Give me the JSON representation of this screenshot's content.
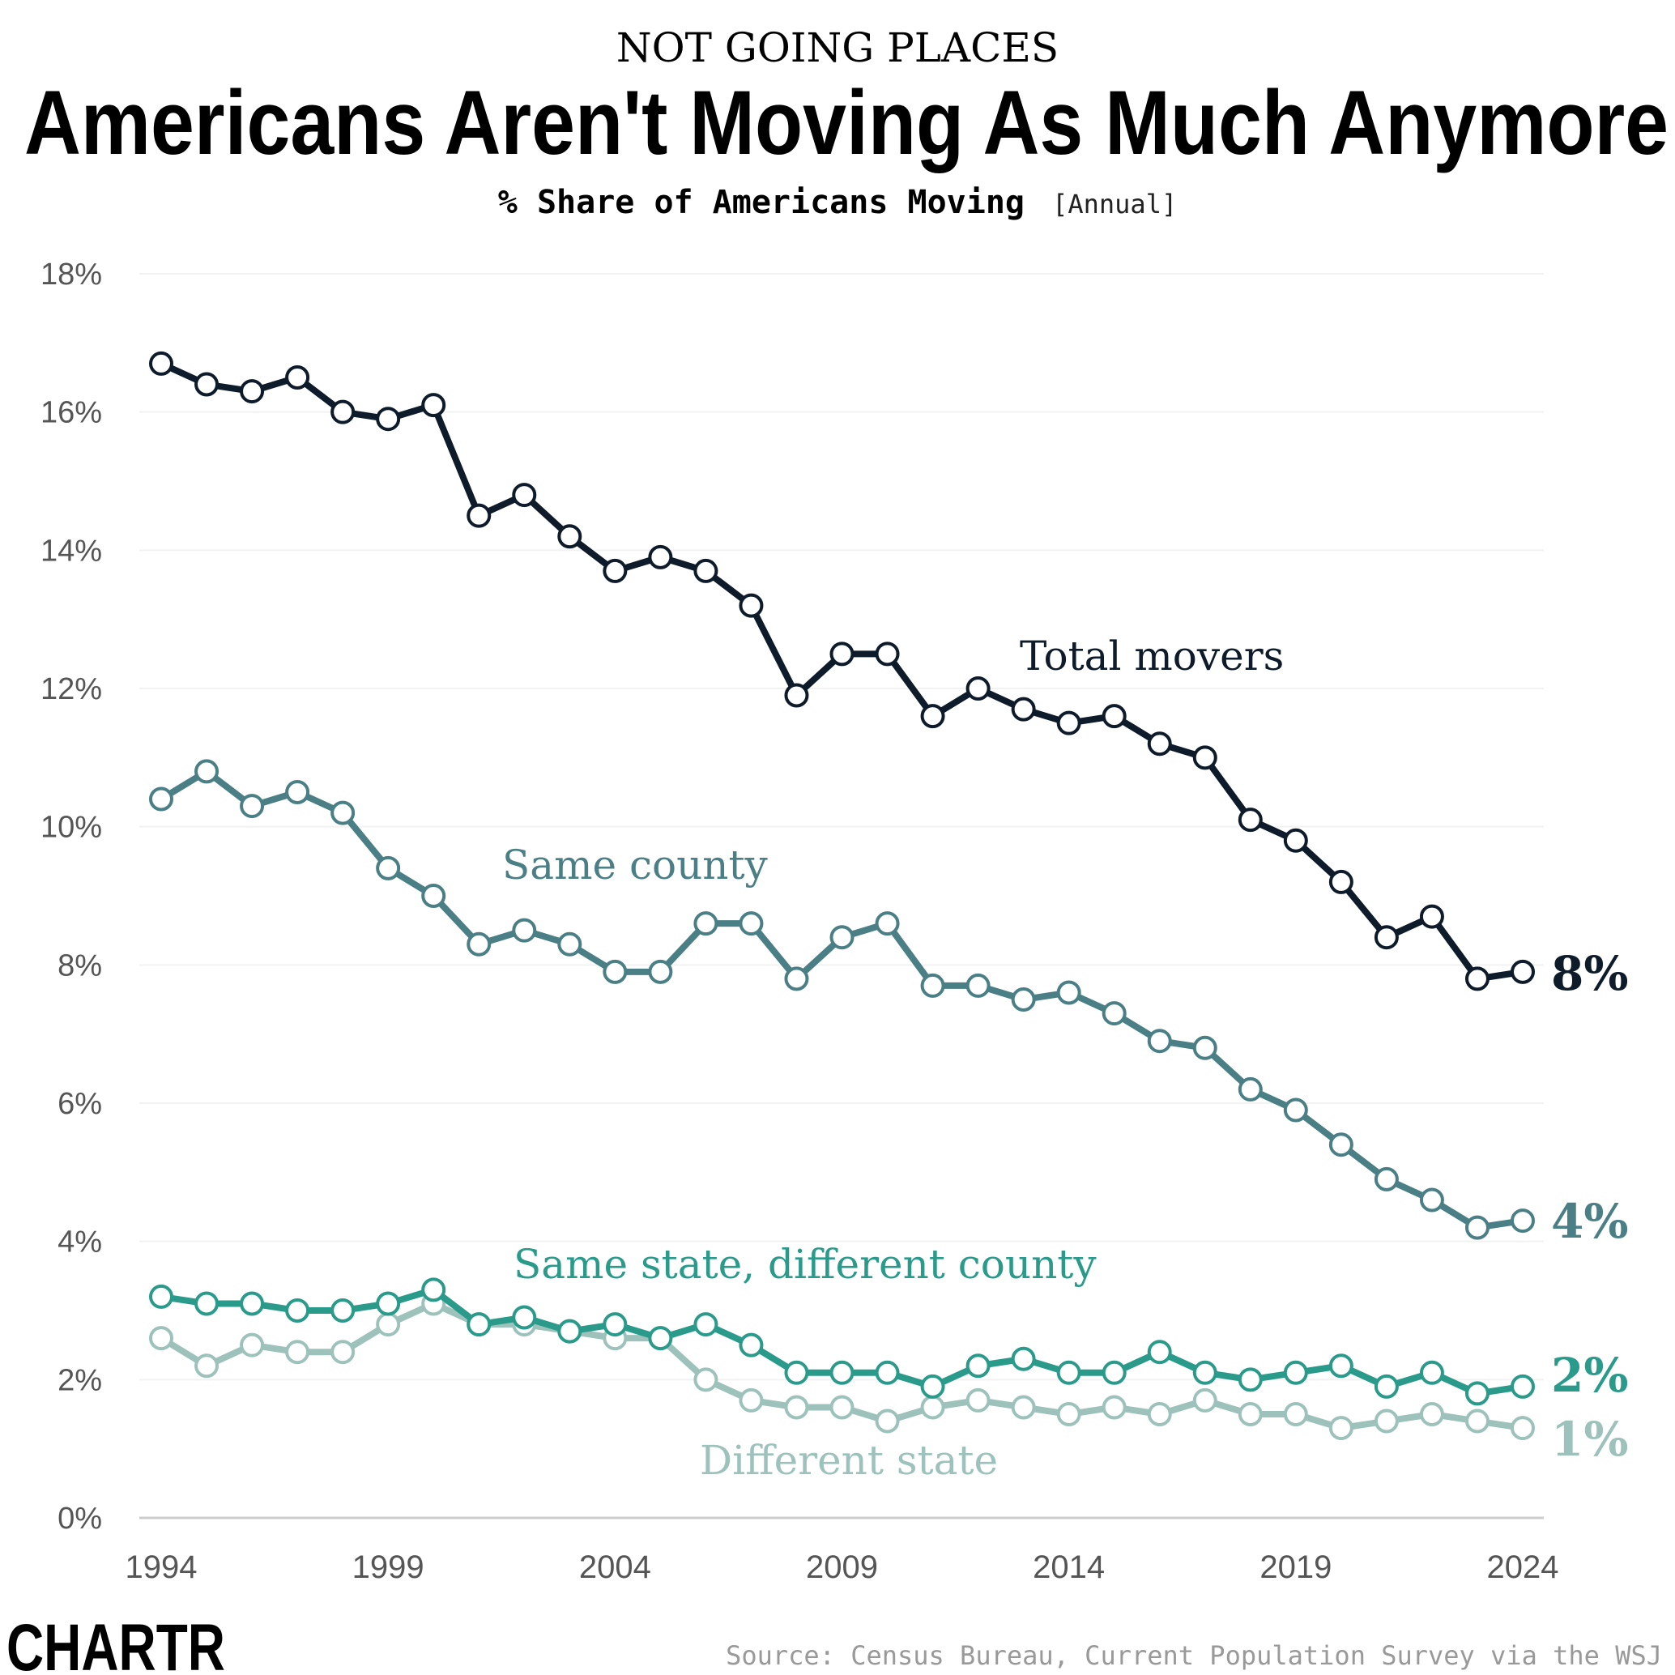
{
  "header": {
    "kicker": "NOT GOING PLACES",
    "title": "Americans Aren't Moving As Much Anymore",
    "subtitle": "% Share of Americans Moving",
    "subtitle_note": "[Annual]"
  },
  "footer": {
    "logo": "CHARTR",
    "source": "Source: Census Bureau, Current Population Survey via the WSJ"
  },
  "chart_data": {
    "type": "line",
    "x": [
      1994,
      1995,
      1996,
      1997,
      1998,
      1999,
      2000,
      2001,
      2002,
      2003,
      2004,
      2005,
      2006,
      2007,
      2008,
      2009,
      2010,
      2011,
      2012,
      2013,
      2014,
      2015,
      2016,
      2017,
      2018,
      2019,
      2020,
      2021,
      2022,
      2023,
      2024
    ],
    "xlim": [
      1994,
      2024
    ],
    "ylim": [
      0,
      18
    ],
    "x_ticks": [
      "1994",
      "1999",
      "2004",
      "2009",
      "2014",
      "2019",
      "2024"
    ],
    "y_ticks": [
      "0%",
      "2%",
      "4%",
      "6%",
      "8%",
      "10%",
      "12%",
      "14%",
      "16%",
      "18%"
    ],
    "grid": "horizontal",
    "markers": "open-circle",
    "series": [
      {
        "name": "Total movers",
        "color": "#0d1b2a",
        "end_label": "8%",
        "values": [
          16.7,
          16.4,
          16.3,
          16.5,
          16.0,
          15.9,
          16.1,
          14.5,
          14.8,
          14.2,
          13.7,
          13.9,
          13.7,
          13.2,
          11.9,
          12.5,
          12.5,
          11.6,
          12.0,
          11.7,
          11.5,
          11.6,
          11.2,
          11.0,
          10.1,
          9.8,
          9.2,
          8.4,
          8.7,
          7.8,
          7.9
        ]
      },
      {
        "name": "Same county",
        "color": "#4a7f86",
        "end_label": "4%",
        "values": [
          10.4,
          10.8,
          10.3,
          10.5,
          10.2,
          9.4,
          9.0,
          8.3,
          8.5,
          8.3,
          7.9,
          7.9,
          8.6,
          8.6,
          7.8,
          8.4,
          8.6,
          7.7,
          7.7,
          7.5,
          7.6,
          7.3,
          6.9,
          6.8,
          6.2,
          5.9,
          5.4,
          4.9,
          4.6,
          4.2,
          4.3
        ]
      },
      {
        "name": "Same state, different county",
        "color": "#2a9a8a",
        "end_label": "2%",
        "values": [
          3.2,
          3.1,
          3.1,
          3.0,
          3.0,
          3.1,
          3.3,
          2.8,
          2.9,
          2.7,
          2.8,
          2.6,
          2.8,
          2.5,
          2.1,
          2.1,
          2.1,
          1.9,
          2.2,
          2.3,
          2.1,
          2.1,
          2.4,
          2.1,
          2.0,
          2.1,
          2.2,
          1.9,
          2.1,
          1.8,
          1.9
        ]
      },
      {
        "name": "Different state",
        "color": "#9dc2bb",
        "end_label": "1%",
        "values": [
          2.6,
          2.2,
          2.5,
          2.4,
          2.4,
          2.8,
          3.1,
          2.8,
          2.8,
          2.7,
          2.6,
          2.6,
          2.0,
          1.7,
          1.6,
          1.6,
          1.4,
          1.6,
          1.7,
          1.6,
          1.5,
          1.6,
          1.5,
          1.7,
          1.5,
          1.5,
          1.3,
          1.4,
          1.5,
          1.4,
          1.3
        ]
      }
    ]
  }
}
